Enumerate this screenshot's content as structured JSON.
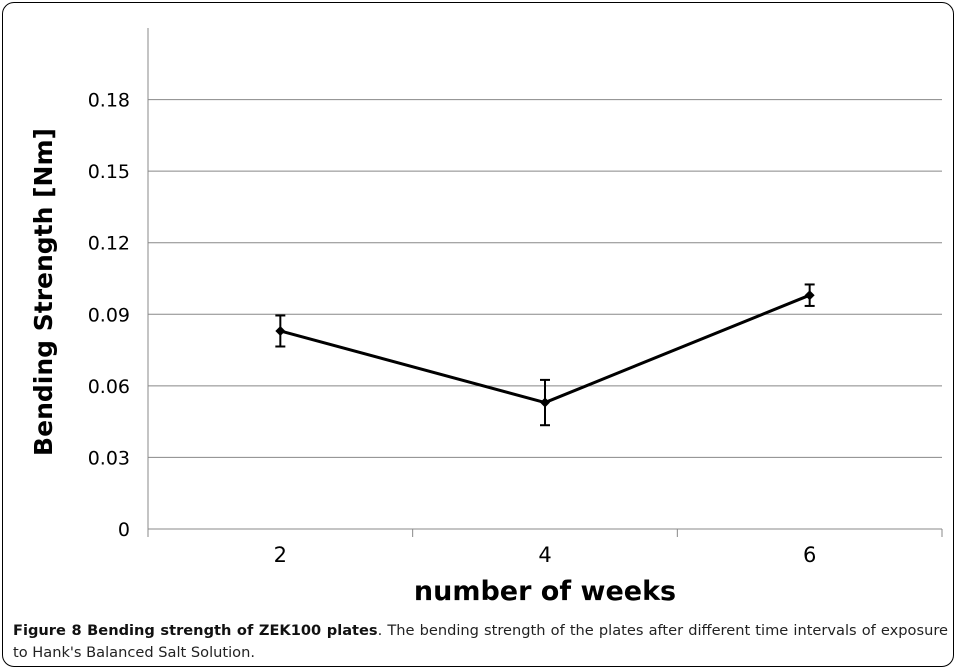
{
  "chart_data": {
    "type": "line",
    "categories": [
      "2",
      "4",
      "6"
    ],
    "series": [
      {
        "values": [
          0.083,
          0.053,
          0.098
        ],
        "errors": [
          0.0065,
          0.0095,
          0.0045
        ]
      }
    ],
    "y_ticks": [
      0,
      0.03,
      0.06,
      0.09,
      0.12,
      0.15,
      0.18
    ],
    "y_tick_labels": [
      "0",
      "0.03",
      "0.06",
      "0.09",
      "0.12",
      "0.15",
      "0.18"
    ],
    "ylim": [
      0,
      0.21
    ],
    "xlabel": "number of weeks",
    "ylabel": "Bending Strength [Nm]",
    "grid": true,
    "line_color": "#000000",
    "grid_color": "#888888"
  },
  "caption": {
    "label": "Figure 8 Bending strength of ZEK100 plates",
    "text": ". The bending strength of the plates after different time intervals of exposure to Hank's Balanced Salt Solution."
  }
}
